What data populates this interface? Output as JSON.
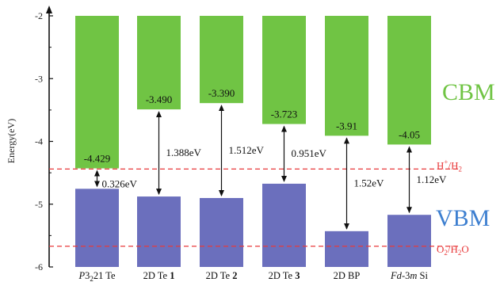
{
  "chart_data": {
    "type": "bar",
    "title": "",
    "xlabel": "",
    "ylabel": "Energy(eV)",
    "ylim": [
      -6,
      -2
    ],
    "y_ticks": [
      -2,
      -3,
      -4,
      -5,
      -6
    ],
    "grid": false,
    "categories": [
      {
        "name": "P3,21 Te",
        "parts": [
          {
            "t": "P",
            "i": true,
            "b": false
          },
          {
            "t": "3",
            "i": false,
            "b": false
          },
          {
            "t": "2",
            "i": false,
            "b": false,
            "sub": true
          },
          {
            "t": "21 Te",
            "i": false,
            "b": false
          }
        ]
      },
      {
        "name": "2D Te 1",
        "parts": [
          {
            "t": "2D Te ",
            "i": false,
            "b": false
          },
          {
            "t": "1",
            "i": false,
            "b": true
          }
        ]
      },
      {
        "name": "2D Te 2",
        "parts": [
          {
            "t": "2D Te ",
            "i": false,
            "b": false
          },
          {
            "t": "2",
            "i": false,
            "b": true
          }
        ]
      },
      {
        "name": "2D Te 3",
        "parts": [
          {
            "t": "2D Te ",
            "i": false,
            "b": false
          },
          {
            "t": "3",
            "i": false,
            "b": true
          }
        ]
      },
      {
        "name": "2D BP",
        "parts": [
          {
            "t": "2D BP",
            "i": false,
            "b": false
          }
        ]
      },
      {
        "name": "Fd-3m Si",
        "parts": [
          {
            "t": "Fd",
            "i": true,
            "b": false
          },
          {
            "t": "-3",
            "i": false,
            "b": false
          },
          {
            "t": "m",
            "i": true,
            "b": false
          },
          {
            "t": " Si",
            "i": false,
            "b": false
          }
        ]
      }
    ],
    "series": [
      {
        "name": "CBM",
        "color": "#70c444",
        "values": [
          -4.429,
          -3.49,
          -3.39,
          -3.723,
          -3.91,
          -4.05
        ],
        "labels": [
          "-4.429",
          "-3.490",
          "-3.390",
          "-3.723",
          "-3.91",
          "-4.05"
        ]
      },
      {
        "name": "VBM",
        "color": "#6b6fbd",
        "values": [
          -4.755,
          -4.878,
          -4.902,
          -4.674,
          -5.43,
          -5.17
        ]
      }
    ],
    "band_gaps": [
      "0.326eV",
      "1.388eV",
      "1.512eV",
      "0.951eV",
      "1.52eV",
      "1.12eV"
    ],
    "reference_lines": [
      {
        "label": "H+/H2",
        "value": -4.44,
        "color": "#e8393a"
      },
      {
        "label": "O2/H2O",
        "value": -5.67,
        "color": "#e8393a"
      }
    ],
    "legend": [
      {
        "text": "CBM",
        "color": "#70c444"
      },
      {
        "text": "VBM",
        "color": "#3d7fd0"
      }
    ]
  }
}
